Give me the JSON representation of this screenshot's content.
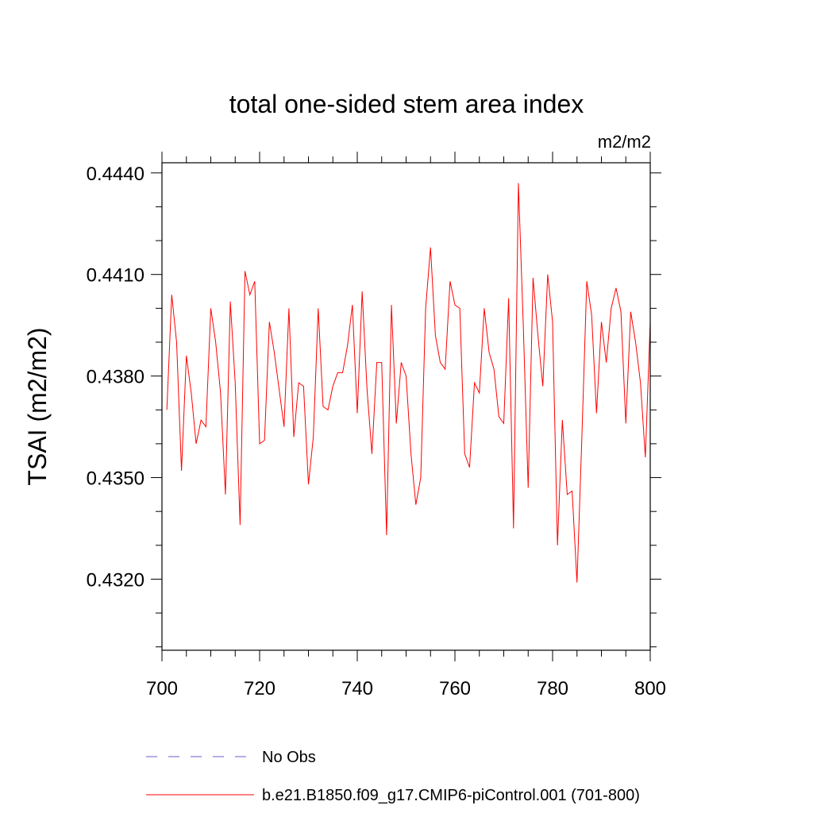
{
  "chart_data": {
    "type": "line",
    "title": "total one-sided stem area index",
    "units": "m2/m2",
    "ylabel": "TSAI  (m2/m2)",
    "xlabel": "",
    "xlim": [
      700,
      800
    ],
    "ylim": [
      0.4299,
      0.4443
    ],
    "x_ticks": [
      700,
      720,
      740,
      760,
      780,
      800
    ],
    "x_tick_labels": [
      "700",
      "720",
      "740",
      "760",
      "780",
      "800"
    ],
    "y_ticks": [
      0.432,
      0.435,
      0.438,
      0.441,
      0.444
    ],
    "y_tick_labels": [
      "0.4320",
      "0.4350",
      "0.4380",
      "0.4410",
      "0.4440"
    ],
    "grid": false,
    "legend_position": "bottom",
    "series": [
      {
        "name": "b.e21.B1850.f09_g17.CMIP6-piControl.001 (701-800)",
        "color": "#ff0000",
        "line_style": "solid",
        "x": [
          701,
          702,
          703,
          704,
          705,
          706,
          707,
          708,
          709,
          710,
          711,
          712,
          713,
          714,
          715,
          716,
          717,
          718,
          719,
          720,
          721,
          722,
          723,
          724,
          725,
          726,
          727,
          728,
          729,
          730,
          731,
          732,
          733,
          734,
          735,
          736,
          737,
          738,
          739,
          740,
          741,
          742,
          743,
          744,
          745,
          746,
          747,
          748,
          749,
          750,
          751,
          752,
          753,
          754,
          755,
          756,
          757,
          758,
          759,
          760,
          761,
          762,
          763,
          764,
          765,
          766,
          767,
          768,
          769,
          770,
          771,
          772,
          773,
          774,
          775,
          776,
          777,
          778,
          779,
          780,
          781,
          782,
          783,
          784,
          785,
          786,
          787,
          788,
          789,
          790,
          791,
          792,
          793,
          794,
          795,
          796,
          797,
          798,
          799,
          800
        ],
        "values": [
          0.437,
          0.4404,
          0.439,
          0.4352,
          0.4386,
          0.4375,
          0.436,
          0.4367,
          0.4365,
          0.44,
          0.439,
          0.4375,
          0.4345,
          0.4402,
          0.4378,
          0.4336,
          0.4411,
          0.4404,
          0.4408,
          0.436,
          0.4361,
          0.4396,
          0.4387,
          0.4376,
          0.4365,
          0.44,
          0.4362,
          0.4378,
          0.4377,
          0.4348,
          0.4362,
          0.44,
          0.4371,
          0.437,
          0.4377,
          0.4381,
          0.4381,
          0.4389,
          0.4401,
          0.4369,
          0.4405,
          0.4376,
          0.4357,
          0.4384,
          0.4384,
          0.4333,
          0.4401,
          0.4366,
          0.4384,
          0.438,
          0.4357,
          0.4342,
          0.435,
          0.44,
          0.4418,
          0.4392,
          0.4384,
          0.4382,
          0.4408,
          0.4401,
          0.44,
          0.4357,
          0.4353,
          0.4378,
          0.4375,
          0.44,
          0.4387,
          0.4382,
          0.4368,
          0.4366,
          0.4403,
          0.4335,
          0.4437,
          0.4395,
          0.4347,
          0.4409,
          0.4392,
          0.4377,
          0.441,
          0.4396,
          0.433,
          0.4367,
          0.4345,
          0.4346,
          0.4319,
          0.4362,
          0.4408,
          0.4398,
          0.4369,
          0.4396,
          0.4384,
          0.44,
          0.4406,
          0.4399,
          0.4366,
          0.4399,
          0.439,
          0.4378,
          0.4356,
          0.4396
        ]
      },
      {
        "name": "No Obs",
        "color": "#6a5acd",
        "line_style": "dashed",
        "x": [],
        "values": []
      }
    ]
  }
}
